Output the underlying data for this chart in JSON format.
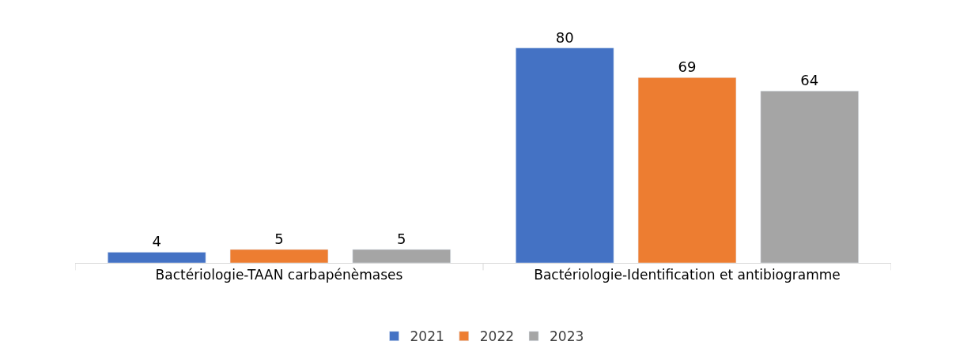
{
  "chart_data": {
    "type": "bar",
    "categories": [
      "Bactériologie-TAAN carbapénèmases",
      "Bactériologie-Identification et antibiogramme"
    ],
    "series": [
      {
        "name": "2021",
        "color": "#4472c4",
        "values": [
          4,
          80
        ]
      },
      {
        "name": "2022",
        "color": "#ed7d31",
        "values": [
          5,
          69
        ]
      },
      {
        "name": "2023",
        "color": "#a5a5a5",
        "values": [
          5,
          64
        ]
      }
    ],
    "data_labels": true,
    "legend": "bottom"
  }
}
